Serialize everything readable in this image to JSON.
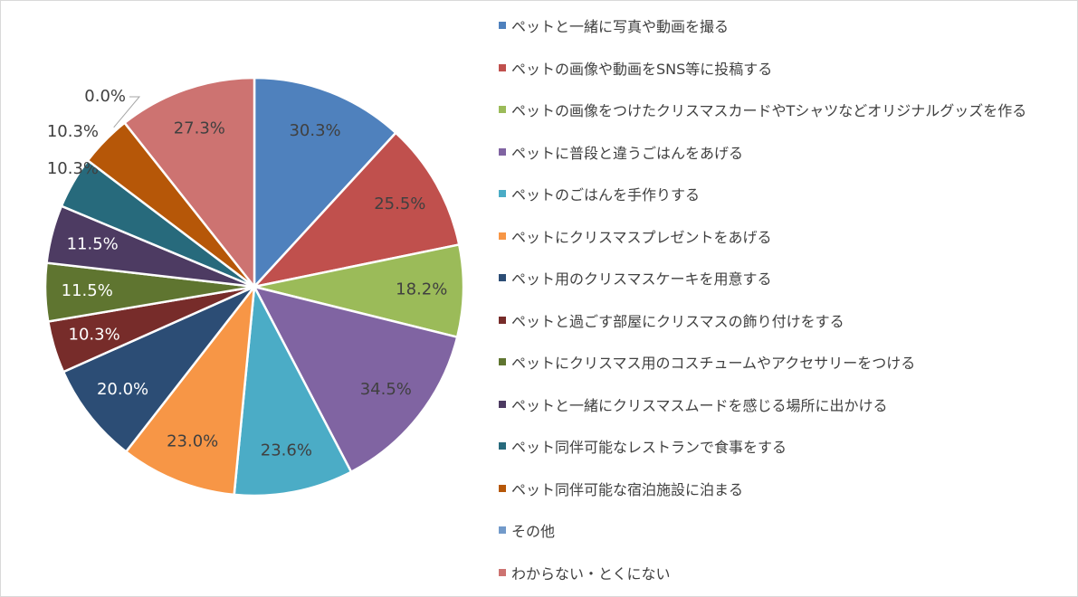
{
  "chart_data": {
    "type": "pie",
    "title": "",
    "legend_position": "right",
    "categories": [
      "ペットと一緒に写真や動画を撮る",
      "ペットの画像や動画をSNS等に投稿する",
      "ペットの画像をつけたクリスマスカードやTシャツなどオリジナルグッズを作る",
      "ペットに普段と違うごはんをあげる",
      "ペットのごはんを手作りする",
      "ペットにクリスマスプレゼントをあげる",
      "ペット用のクリスマスケーキを用意する",
      "ペットと過ごす部屋にクリスマスの飾り付けをする",
      "ペットにクリスマス用のコスチュームやアクセサリーをつける",
      "ペットと一緒にクリスマスムードを感じる場所に出かける",
      "ペット同伴可能なレストランで食事をする",
      "ペット同伴可能な宿泊施設に泊まる",
      "その他",
      "わからない・とくにない"
    ],
    "values": [
      30.3,
      25.5,
      18.2,
      34.5,
      23.6,
      23.0,
      20.0,
      10.3,
      11.5,
      11.5,
      10.3,
      10.3,
      0.0,
      27.3
    ],
    "data_labels": [
      "30.3%",
      "25.5%",
      "18.2%",
      "34.5%",
      "23.6%",
      "23.0%",
      "20.0%",
      "10.3%",
      "11.5%",
      "11.5%",
      "10.3%",
      "10.3%",
      "0.0%",
      "27.3%"
    ],
    "colors": [
      "#4f81bd",
      "#c0504d",
      "#9bbb59",
      "#8064a2",
      "#4bacc6",
      "#f79646",
      "#2c4d75",
      "#772c2a",
      "#5f7530",
      "#4d3b62",
      "#276a7c",
      "#b65708",
      "#729aca",
      "#cd7371"
    ],
    "label_colors": [
      "#404040",
      "#404040",
      "#404040",
      "#404040",
      "#404040",
      "#404040",
      "#ffffff",
      "#ffffff",
      "#ffffff",
      "#ffffff",
      "#404040",
      "#404040",
      "#404040",
      "#404040"
    ]
  }
}
